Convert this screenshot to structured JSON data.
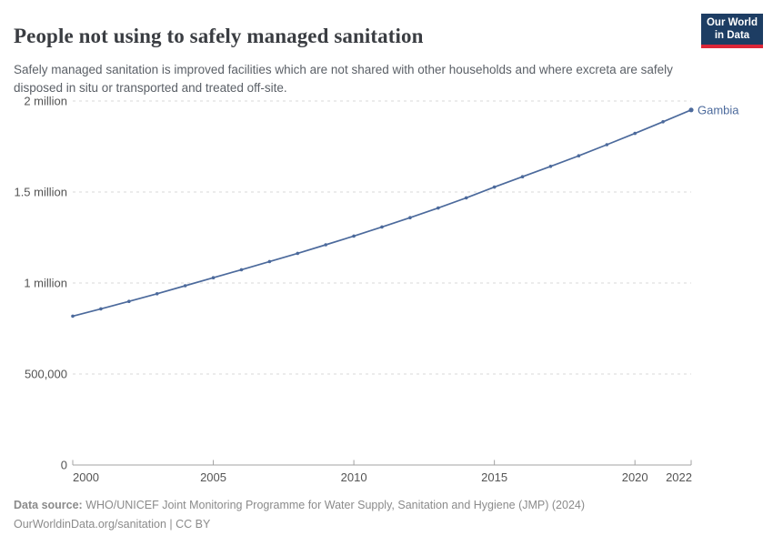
{
  "header": {
    "title": "People not using to safely managed sanitation",
    "subtitle": "Safely managed sanitation is improved facilities which are not shared with other households and where excreta are safely disposed in situ or transported and treated off-site.",
    "logo": {
      "line1": "Our World",
      "line2": "in Data"
    }
  },
  "footer": {
    "data_source_label": "Data source:",
    "data_source_text": " WHO/UNICEF Joint Monitoring Programme for Water Supply, Sanitation and Hygiene (JMP) (2024)",
    "license_line": "OurWorldinData.org/sanitation | CC BY"
  },
  "colors": {
    "series": "#4c6a9c",
    "grid": "#dadada",
    "axis": "#a3a3a3",
    "tick_text": "#545454",
    "logo_bg": "#1d3d63",
    "logo_red": "#dc2638"
  },
  "chart_data": {
    "type": "line",
    "title": "People not using to safely managed sanitation",
    "xlabel": "",
    "ylabel": "",
    "grid": "dashed-horizontal",
    "legend_position": "end-of-line",
    "xlim": [
      2000,
      2022
    ],
    "ylim": [
      0,
      2000000
    ],
    "x_ticks": [
      2000,
      2005,
      2010,
      2015,
      2020,
      2022
    ],
    "y_ticks": [
      {
        "value": 0,
        "label": "0"
      },
      {
        "value": 500000,
        "label": "500,000"
      },
      {
        "value": 1000000,
        "label": "1 million"
      },
      {
        "value": 1500000,
        "label": "1.5 million"
      },
      {
        "value": 2000000,
        "label": "2 million"
      }
    ],
    "series": [
      {
        "name": "Gambia",
        "x": [
          2000,
          2001,
          2002,
          2003,
          2004,
          2005,
          2006,
          2007,
          2008,
          2009,
          2010,
          2011,
          2012,
          2013,
          2014,
          2015,
          2016,
          2017,
          2018,
          2019,
          2020,
          2021,
          2022
        ],
        "values": [
          818000,
          858000,
          899000,
          941000,
          985000,
          1029000,
          1073000,
          1118000,
          1163000,
          1210000,
          1258000,
          1308000,
          1359000,
          1412000,
          1468000,
          1527000,
          1584000,
          1641000,
          1699000,
          1760000,
          1822000,
          1886000,
          1951000
        ]
      }
    ]
  }
}
